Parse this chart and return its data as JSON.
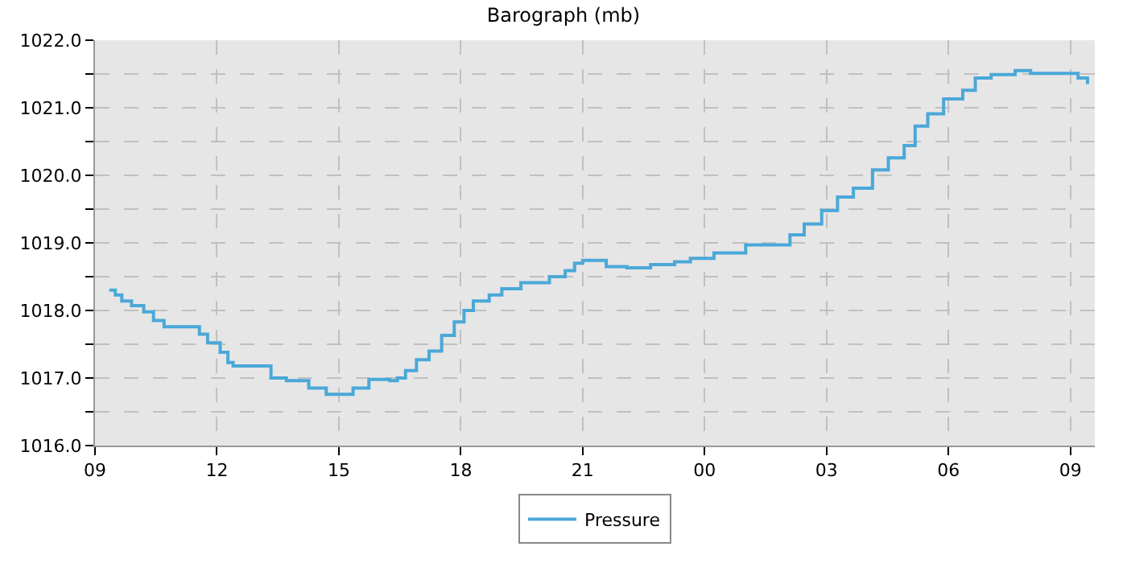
{
  "chart_data": {
    "type": "step",
    "title": "Barograph (mb)",
    "xlim": [
      9,
      33.6
    ],
    "xticks": [
      {
        "value": 9,
        "label": "09"
      },
      {
        "value": 12,
        "label": "12"
      },
      {
        "value": 15,
        "label": "15"
      },
      {
        "value": 18,
        "label": "18"
      },
      {
        "value": 21,
        "label": "21"
      },
      {
        "value": 24,
        "label": "00"
      },
      {
        "value": 27,
        "label": "03"
      },
      {
        "value": 30,
        "label": "06"
      },
      {
        "value": 33,
        "label": "09"
      }
    ],
    "ylim": [
      1016,
      1022
    ],
    "yticks": [
      {
        "value": 1016,
        "label": "1016.0"
      },
      {
        "value": 1016.5,
        "label": null
      },
      {
        "value": 1017,
        "label": "1017.0"
      },
      {
        "value": 1017.5,
        "label": null
      },
      {
        "value": 1018,
        "label": "1018.0"
      },
      {
        "value": 1018.5,
        "label": null
      },
      {
        "value": 1019,
        "label": "1019.0"
      },
      {
        "value": 1019.5,
        "label": null
      },
      {
        "value": 1020,
        "label": "1020.0"
      },
      {
        "value": 1020.5,
        "label": null
      },
      {
        "value": 1021,
        "label": "1021.0"
      },
      {
        "value": 1021.5,
        "label": null
      },
      {
        "value": 1022,
        "label": "1022.0"
      }
    ],
    "grid": true,
    "legend": "bottom",
    "marker": "none",
    "line_style": "solid",
    "x": [
      9.35,
      9.5,
      9.66,
      9.9,
      10.2,
      10.44,
      10.7,
      11.38,
      11.57,
      11.77,
      12.08,
      12.27,
      12.4,
      13.13,
      13.33,
      13.71,
      14.03,
      14.26,
      14.69,
      15.08,
      15.35,
      15.74,
      16.25,
      16.44,
      16.64,
      16.91,
      17.22,
      17.53,
      17.84,
      18.08,
      18.31,
      18.7,
      19.01,
      19.48,
      20.18,
      20.57,
      20.8,
      21.0,
      21.35,
      21.58,
      22.09,
      22.67,
      23.26,
      23.65,
      24.23,
      25.01,
      25.6,
      26.1,
      26.45,
      26.88,
      27.27,
      27.66,
      28.13,
      28.52,
      28.91,
      29.18,
      29.49,
      29.88,
      30.35,
      30.66,
      31.05,
      31.64,
      32.02,
      32.8,
      33.19,
      33.42
    ],
    "series": [
      {
        "name": "Pressure",
        "color": "#4aa8d8",
        "values": [
          1018.3,
          1018.23,
          1018.14,
          1018.07,
          1017.98,
          1017.85,
          1017.76,
          1017.76,
          1017.65,
          1017.52,
          1017.38,
          1017.23,
          1017.18,
          1017.18,
          1017.0,
          1016.96,
          1016.96,
          1016.85,
          1016.76,
          1016.76,
          1016.85,
          1016.98,
          1016.96,
          1017.0,
          1017.11,
          1017.27,
          1017.4,
          1017.63,
          1017.83,
          1018.0,
          1018.14,
          1018.23,
          1018.32,
          1018.41,
          1018.5,
          1018.59,
          1018.7,
          1018.74,
          1018.74,
          1018.65,
          1018.63,
          1018.68,
          1018.72,
          1018.77,
          1018.85,
          1018.97,
          1018.97,
          1019.12,
          1019.28,
          1019.48,
          1019.68,
          1019.81,
          1020.08,
          1020.26,
          1020.44,
          1020.73,
          1020.91,
          1021.13,
          1021.26,
          1021.44,
          1021.49,
          1021.55,
          1021.51,
          1021.51,
          1021.44,
          1021.35
        ]
      }
    ]
  }
}
